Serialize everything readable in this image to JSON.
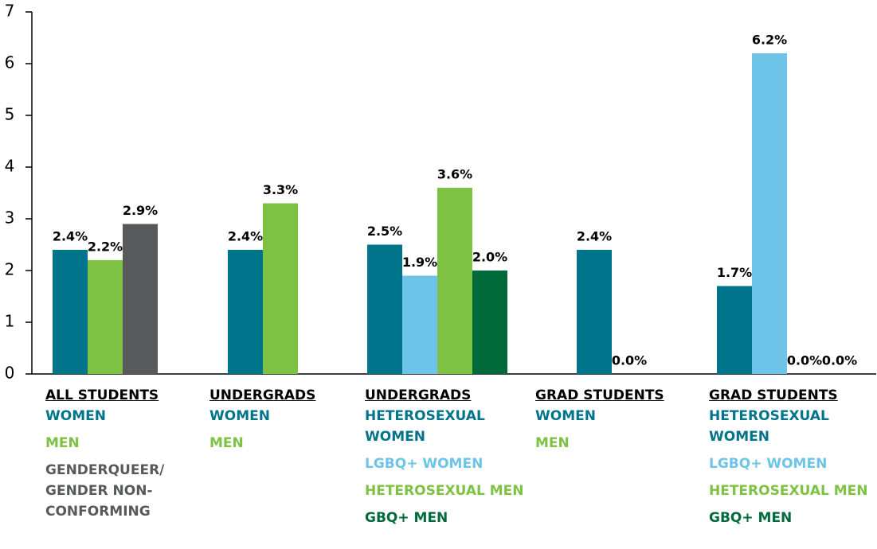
{
  "chart_data": {
    "type": "bar",
    "ylim": [
      0,
      7
    ],
    "yticks": [
      0,
      1,
      2,
      3,
      4,
      5,
      6,
      7
    ],
    "groups": [
      {
        "name": "ALL STUDENTS",
        "bars": [
          {
            "label": "WOMEN",
            "color": "#00748a",
            "value": 2.4,
            "value_label": "2.4%"
          },
          {
            "label": "MEN",
            "color": "#7dc242",
            "value": 2.2,
            "value_label": "2.2%"
          },
          {
            "label": "GENDERQUEER/ GENDER NON-CONFORMING",
            "color": "#58595b",
            "value": 2.9,
            "value_label": "2.9%"
          }
        ]
      },
      {
        "name": "UNDERGRADS",
        "bars": [
          {
            "label": "WOMEN",
            "color": "#00748a",
            "value": 2.4,
            "value_label": "2.4%"
          },
          {
            "label": "MEN",
            "color": "#7dc242",
            "value": 3.3,
            "value_label": "3.3%"
          }
        ]
      },
      {
        "name": "UNDERGRADS",
        "bars": [
          {
            "label": "HETEROSEXUAL WOMEN",
            "color": "#00748a",
            "value": 2.5,
            "value_label": "2.5%"
          },
          {
            "label": "LGBQ+ WOMEN",
            "color": "#6ec4e8",
            "value": 1.9,
            "value_label": "1.9%"
          },
          {
            "label": "HETEROSEXUAL MEN",
            "color": "#7dc242",
            "value": 3.6,
            "value_label": "3.6%"
          },
          {
            "label": "GBQ+ MEN",
            "color": "#006a3a",
            "value": 2.0,
            "value_label": "2.0%"
          }
        ]
      },
      {
        "name": "GRAD STUDENTS",
        "bars": [
          {
            "label": "WOMEN",
            "color": "#00748a",
            "value": 2.4,
            "value_label": "2.4%"
          },
          {
            "label": "MEN",
            "color": "#7dc242",
            "value": 0.0,
            "value_label": "0.0%"
          }
        ]
      },
      {
        "name": "GRAD STUDENTS",
        "bars": [
          {
            "label": "HETEROSEXUAL WOMEN",
            "color": "#00748a",
            "value": 1.7,
            "value_label": "1.7%"
          },
          {
            "label": "LGBQ+ WOMEN",
            "color": "#6ec4e8",
            "value": 6.2,
            "value_label": "6.2%"
          },
          {
            "label": "HETEROSEXUAL MEN",
            "color": "#7dc242",
            "value": 0.0,
            "value_label": "0.0%"
          },
          {
            "label": "GBQ+ MEN",
            "color": "#006a3a",
            "value": 0.0,
            "value_label": "0.0%"
          }
        ]
      }
    ]
  }
}
